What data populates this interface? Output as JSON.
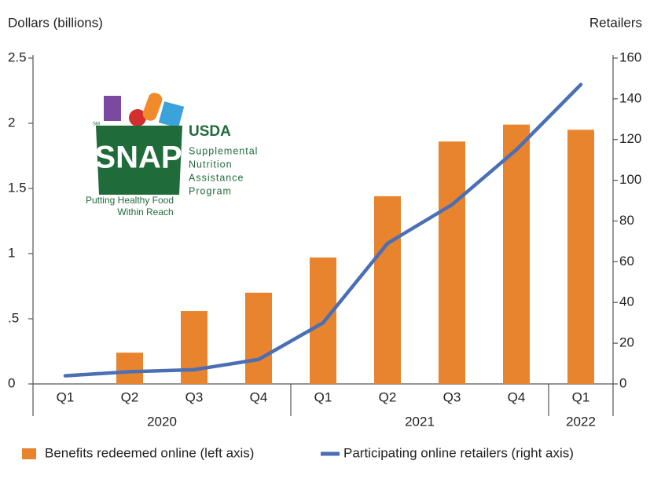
{
  "chart_data": {
    "type": "bar",
    "y_axis_label": "Dollars (billions)",
    "y2_axis_label": "Retailers",
    "categories": [
      "Q1",
      "Q2",
      "Q3",
      "Q4",
      "Q1",
      "Q2",
      "Q3",
      "Q4",
      "Q1"
    ],
    "groups": [
      {
        "label": "2020",
        "count": 4
      },
      {
        "label": "2021",
        "count": 4
      },
      {
        "label": "2022",
        "count": 1
      }
    ],
    "series": [
      {
        "name": "Benefits redeemed online (left axis)",
        "type": "bar",
        "color": "#e8832e",
        "values": [
          null,
          0.24,
          0.56,
          0.7,
          0.97,
          1.44,
          1.86,
          1.99,
          1.95
        ]
      },
      {
        "name": "Participating online retailers (right axis)",
        "type": "line",
        "axis": "y2",
        "color": "#4a6fb5",
        "values": [
          4,
          6,
          7,
          12,
          30,
          69,
          88,
          115,
          147
        ]
      }
    ],
    "ylim": [
      0,
      2.5
    ],
    "yticks": [
      0,
      {
        "value": 0.5,
        "label": ".5"
      },
      1,
      1.5,
      2,
      2.5
    ],
    "y2lim": [
      0,
      160
    ],
    "y2ticks": [
      0,
      20,
      40,
      60,
      80,
      100,
      120,
      140,
      160
    ],
    "legend": "bottom",
    "logo": {
      "badge": "SNAP",
      "mark": "SM",
      "agency": "USDA",
      "program": [
        "Supplemental",
        "Nutrition",
        "Assistance",
        "Program"
      ],
      "tagline": [
        "Putting Healthy Food",
        "Within Reach"
      ]
    }
  }
}
